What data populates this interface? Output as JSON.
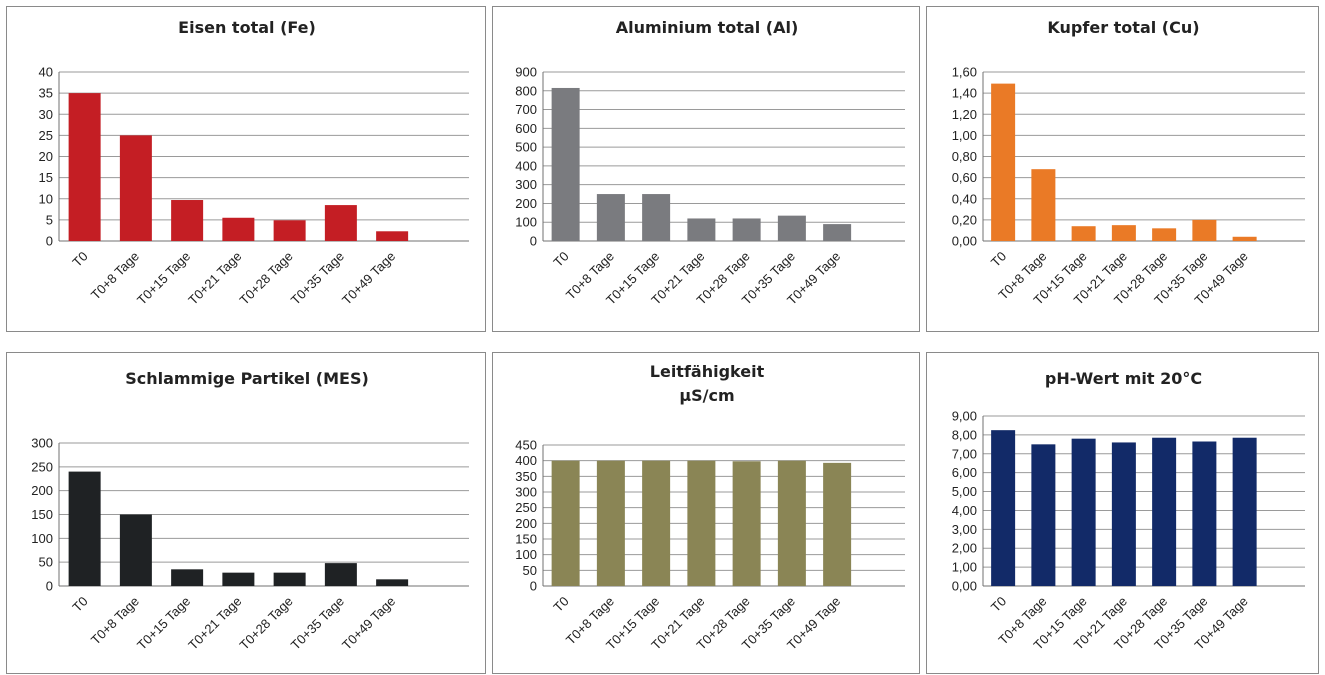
{
  "chart_data": [
    {
      "type": "bar",
      "title": "Eisen total (Fe)",
      "categories": [
        "T0",
        "T0+8 Tage",
        "T0+15 Tage",
        "T0+21 Tage",
        "T0+28 Tage",
        "T0+35 Tage",
        "T0+49 Tage"
      ],
      "values": [
        35,
        25,
        9.7,
        5.5,
        4.9,
        8.5,
        2.3
      ],
      "ylim": [
        0,
        40
      ],
      "yticks": [
        "0",
        "5",
        "10",
        "15",
        "20",
        "25",
        "30",
        "35",
        "40"
      ],
      "color": "#c41e24",
      "grid": true,
      "xlabel": "",
      "ylabel": ""
    },
    {
      "type": "bar",
      "title": "Aluminium total (Al)",
      "categories": [
        "T0",
        "T0+8 Tage",
        "T0+15 Tage",
        "T0+21 Tage",
        "T0+28 Tage",
        "T0+35 Tage",
        "T0+49 Tage"
      ],
      "values": [
        815,
        250,
        250,
        120,
        120,
        135,
        90
      ],
      "ylim": [
        0,
        900
      ],
      "yticks": [
        "0",
        "100",
        "200",
        "300",
        "400",
        "500",
        "600",
        "700",
        "800",
        "900"
      ],
      "color": "#7a7b7f",
      "grid": true,
      "xlabel": "",
      "ylabel": ""
    },
    {
      "type": "bar",
      "title": "Kupfer total (Cu)",
      "categories": [
        "T0",
        "T0+8 Tage",
        "T0+15 Tage",
        "T0+21 Tage",
        "T0+28 Tage",
        "T0+35 Tage",
        "T0+49 Tage"
      ],
      "values": [
        1.49,
        0.68,
        0.14,
        0.15,
        0.12,
        0.2,
        0.04
      ],
      "ylim": [
        0,
        1.6
      ],
      "yticks": [
        "0,00",
        "0,20",
        "0,40",
        "0,60",
        "0,80",
        "1,00",
        "1,20",
        "1,40",
        "1,60"
      ],
      "color": "#ea7a26",
      "grid": true,
      "xlabel": "",
      "ylabel": ""
    },
    {
      "type": "bar",
      "title": "Schlammige Partikel (MES)",
      "categories": [
        "T0",
        "T0+8 Tage",
        "T0+15 Tage",
        "T0+21 Tage",
        "T0+28 Tage",
        "T0+35 Tage",
        "T0+49 Tage"
      ],
      "values": [
        240,
        150,
        35,
        28,
        28,
        48,
        14
      ],
      "ylim": [
        0,
        300
      ],
      "yticks": [
        "0",
        "50",
        "100",
        "150",
        "200",
        "250",
        "300"
      ],
      "color": "#1f2224",
      "grid": true,
      "xlabel": "",
      "ylabel": ""
    },
    {
      "type": "bar",
      "title": "Leitfähigkeit",
      "subtitle": "µS/cm",
      "categories": [
        "T0",
        "T0+8 Tage",
        "T0+15 Tage",
        "T0+21 Tage",
        "T0+28 Tage",
        "T0+35 Tage",
        "T0+49 Tage"
      ],
      "values": [
        400,
        400,
        400,
        400,
        398,
        400,
        393
      ],
      "ylim": [
        0,
        450
      ],
      "yticks": [
        "0",
        "50",
        "100",
        "150",
        "200",
        "250",
        "300",
        "350",
        "400",
        "450"
      ],
      "color": "#8a8555",
      "grid": true,
      "xlabel": "",
      "ylabel": ""
    },
    {
      "type": "bar",
      "title": "pH-Wert mit 20°C",
      "categories": [
        "T0",
        "T0+8 Tage",
        "T0+15 Tage",
        "T0+21 Tage",
        "T0+28 Tage",
        "T0+35 Tage",
        "T0+49 Tage"
      ],
      "values": [
        8.25,
        7.5,
        7.8,
        7.6,
        7.85,
        7.65,
        7.85
      ],
      "ylim": [
        0,
        9
      ],
      "yticks": [
        "0,00",
        "1,00",
        "2,00",
        "3,00",
        "4,00",
        "5,00",
        "6,00",
        "7,00",
        "8,00",
        "9,00"
      ],
      "color": "#122a68",
      "grid": true,
      "xlabel": "",
      "ylabel": ""
    }
  ]
}
